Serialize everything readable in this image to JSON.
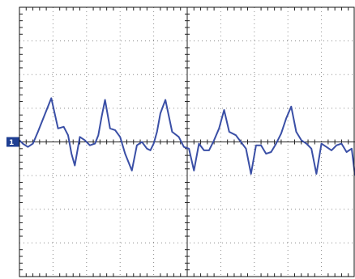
{
  "chart_data": {
    "type": "line",
    "title": "",
    "xlabel": "",
    "ylabel": "",
    "grid": true,
    "divisions": {
      "x": 10,
      "y": 8
    },
    "xlim": [
      0,
      10
    ],
    "ylim": [
      -4,
      4
    ],
    "channel_marker": "1",
    "trace_color": "#3a4fa6",
    "marker_color": "#1f3f93",
    "grid_color": "#8a8a8a",
    "frame_color": "#111111",
    "series": [
      {
        "x": [
          0.0,
          0.1,
          0.25,
          0.4,
          0.55,
          0.75,
          0.95,
          1.15,
          1.32,
          1.45,
          1.55,
          1.65,
          1.8,
          1.95,
          2.1,
          2.25,
          2.35,
          2.45,
          2.55,
          2.7,
          2.85,
          3.0,
          3.15,
          3.35,
          3.5,
          3.65,
          3.8,
          3.9,
          4.0,
          4.1,
          4.2,
          4.35,
          4.55,
          4.75,
          4.9,
          5.05,
          5.2,
          5.35,
          5.5,
          5.65,
          5.8,
          5.95,
          6.1,
          6.25,
          6.45,
          6.6,
          6.75,
          6.9,
          7.05,
          7.2,
          7.35,
          7.5,
          7.65,
          7.8,
          7.95,
          8.1,
          8.25,
          8.4,
          8.55,
          8.7,
          8.85,
          9.0,
          9.15,
          9.3,
          9.45,
          9.6,
          9.75,
          9.9,
          10.0
        ],
        "y": [
          0.05,
          -0.05,
          -0.15,
          -0.05,
          0.3,
          0.8,
          1.3,
          0.4,
          0.45,
          0.2,
          -0.35,
          -0.7,
          0.15,
          0.05,
          -0.1,
          -0.05,
          0.2,
          0.75,
          1.25,
          0.4,
          0.35,
          0.15,
          -0.35,
          -0.85,
          -0.1,
          0.0,
          -0.2,
          -0.25,
          -0.05,
          0.3,
          0.85,
          1.25,
          0.3,
          0.15,
          -0.15,
          -0.2,
          -0.85,
          -0.05,
          -0.25,
          -0.25,
          0.05,
          0.4,
          0.95,
          0.3,
          0.2,
          0.0,
          -0.2,
          -0.95,
          -0.1,
          -0.1,
          -0.35,
          -0.3,
          -0.05,
          0.25,
          0.7,
          1.05,
          0.3,
          0.05,
          -0.05,
          -0.2,
          -0.95,
          -0.05,
          -0.15,
          -0.25,
          -0.1,
          -0.05,
          -0.3,
          -0.2,
          -1.0
        ]
      }
    ]
  }
}
